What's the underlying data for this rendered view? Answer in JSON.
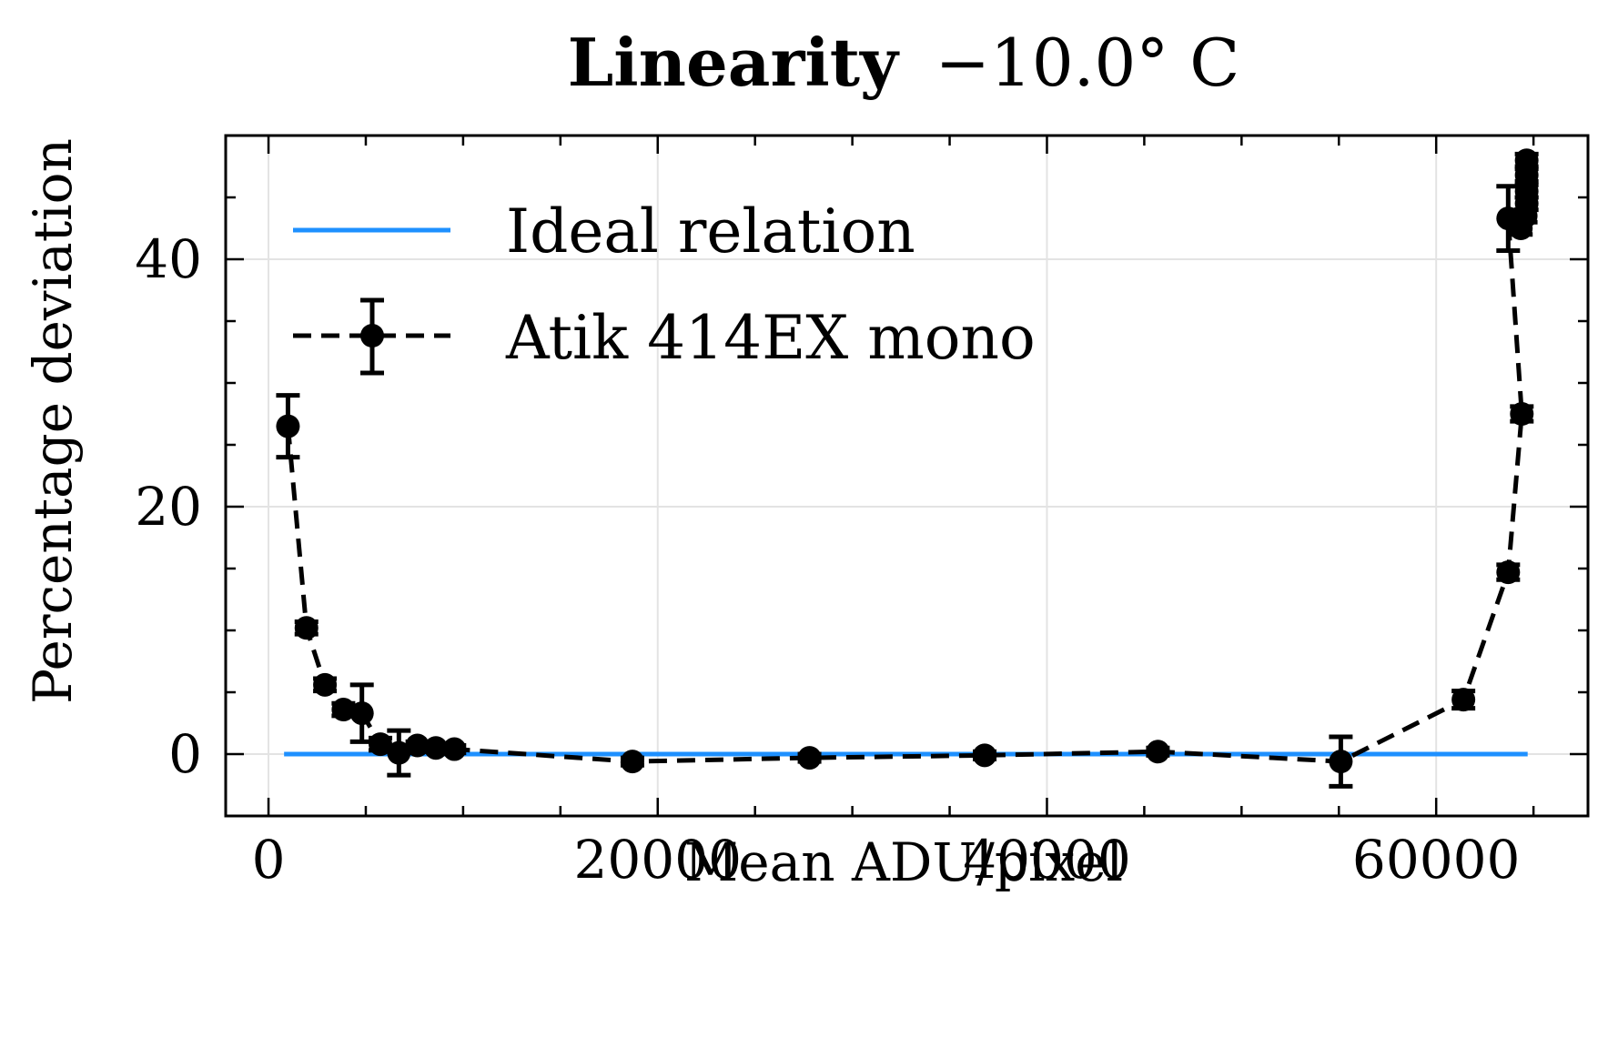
{
  "chart_data": {
    "type": "scatter",
    "title_main": "Linearity",
    "title_rest": "−10.0° C",
    "xlabel": "Mean ADU/pixel",
    "ylabel": "Percentage deviation",
    "xlim": [
      -2200,
      67800
    ],
    "ylim": [
      -5,
      50
    ],
    "xticks": [
      0,
      20000,
      40000,
      60000
    ],
    "xtick_labels": [
      "0",
      "20000",
      "40000",
      "60000"
    ],
    "yticks": [
      0,
      20,
      40
    ],
    "ytick_labels": [
      "0",
      "20",
      "40"
    ],
    "x_minor_step": 5000,
    "y_minor_step": 5,
    "grid": true,
    "legend_position": "top-left",
    "series": [
      {
        "name": "Ideal relation",
        "kind": "line",
        "color": "#1e90ff",
        "x": [
          800,
          64700
        ],
        "y": [
          0,
          0
        ]
      },
      {
        "name": "Atik 414EX mono",
        "kind": "errorbar",
        "color": "#000000",
        "linestyle": "dashed",
        "x": [
          1000,
          1950,
          2900,
          3850,
          4800,
          5750,
          6700,
          7650,
          8600,
          9550,
          18700,
          27800,
          36800,
          45700,
          55100,
          61400,
          63700,
          64400,
          63700,
          64350,
          64600,
          64650,
          64650,
          64650,
          64650
        ],
        "y": [
          26.5,
          10.2,
          5.6,
          3.6,
          3.3,
          0.8,
          0.1,
          0.7,
          0.5,
          0.4,
          -0.6,
          -0.3,
          -0.1,
          0.2,
          -0.6,
          4.4,
          14.7,
          27.5,
          43.3,
          42.5,
          43.5,
          44.5,
          45.5,
          46.8,
          48.0
        ],
        "yerr": [
          2.5,
          0.5,
          0.5,
          0.5,
          2.3,
          0.5,
          1.8,
          0.3,
          0.3,
          0.3,
          0.3,
          0.3,
          0.3,
          0.3,
          2.0,
          0.7,
          0.6,
          0.6,
          2.6,
          0.5,
          0.5,
          0.5,
          0.5,
          0.5,
          0.5
        ]
      }
    ]
  }
}
